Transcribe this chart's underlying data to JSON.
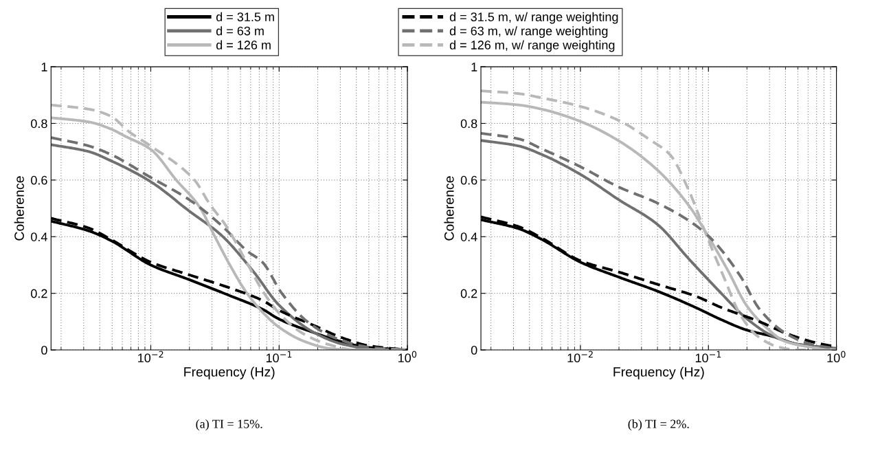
{
  "chart_data": [
    {
      "type": "line",
      "xlabel": "Frequency (Hz)",
      "ylabel": "Coherence",
      "log": "x",
      "grid": true,
      "legend": "top",
      "marker": "none",
      "xlim": [
        0.00167,
        1
      ],
      "xticks": [
        {
          "value": 0.01,
          "label": "10$^{−2}$"
        },
        {
          "value": 0.1,
          "label": "10$^{−1}$"
        },
        {
          "value": 1,
          "label": "10$^{0}$"
        }
      ],
      "ylim": [
        0,
        1
      ],
      "yticks": [
        0,
        0.2,
        0.4,
        0.6,
        0.8,
        1
      ],
      "annotations": [
        "(a) TI = 15%."
      ],
      "series": [
        {
          "name": "d = 31.5 m",
          "color": "#000000",
          "line_style": "solid",
          "x": [
            0.00167,
            0.00331,
            0.0049,
            0.01,
            0.02,
            0.0407,
            0.0741,
            0.1,
            0.19,
            0.302,
            0.479,
            1
          ],
          "values": [
            0.455,
            0.42,
            0.386,
            0.3,
            0.248,
            0.193,
            0.144,
            0.109,
            0.06,
            0.03,
            0.01,
            0
          ]
        },
        {
          "name": "d = 63 m",
          "color": "#707070",
          "line_style": "solid",
          "x": [
            0.00167,
            0.00331,
            0.0049,
            0.01,
            0.02,
            0.0355,
            0.063,
            0.1,
            0.19,
            0.316,
            0.631,
            1
          ],
          "values": [
            0.725,
            0.7,
            0.668,
            0.594,
            0.49,
            0.405,
            0.277,
            0.158,
            0.06,
            0.02,
            0,
            0
          ]
        },
        {
          "name": "d = 126 m",
          "color": "#b8b8b8",
          "line_style": "solid",
          "x": [
            0.00167,
            0.00331,
            0.0049,
            0.0063,
            0.01,
            0.0158,
            0.024,
            0.0316,
            0.0417,
            0.0562,
            0.0794,
            0.1,
            0.158,
            0.251,
            0.398,
            1
          ],
          "values": [
            0.82,
            0.805,
            0.78,
            0.755,
            0.708,
            0.6,
            0.505,
            0.4,
            0.297,
            0.2,
            0.12,
            0.08,
            0.03,
            0.005,
            0,
            0
          ]
        },
        {
          "name": "d = 31.5 m, w/ range weighting",
          "color": "#000000",
          "line_style": "dashed",
          "x": [
            0.00167,
            0.00331,
            0.0049,
            0.01,
            0.02,
            0.0407,
            0.0741,
            0.1,
            0.19,
            0.302,
            0.5,
            1
          ],
          "values": [
            0.465,
            0.43,
            0.39,
            0.31,
            0.265,
            0.22,
            0.175,
            0.14,
            0.085,
            0.045,
            0.015,
            0
          ]
        },
        {
          "name": "d = 63 m, w/ range weighting",
          "color": "#707070",
          "line_style": "dashed",
          "x": [
            0.00167,
            0.00331,
            0.0049,
            0.01,
            0.02,
            0.0355,
            0.0562,
            0.0741,
            0.105,
            0.166,
            0.282,
            0.5,
            1
          ],
          "values": [
            0.75,
            0.72,
            0.69,
            0.609,
            0.53,
            0.44,
            0.35,
            0.31,
            0.2,
            0.1,
            0.04,
            0.01,
            0
          ]
        },
        {
          "name": "d = 126 m, w/ range weighting",
          "color": "#b8b8b8",
          "line_style": "dashed",
          "x": [
            0.00167,
            0.00331,
            0.0049,
            0.0068,
            0.01,
            0.0219,
            0.0288,
            0.0389,
            0.0562,
            0.0741,
            0.1,
            0.151,
            0.24,
            0.398,
            1
          ],
          "values": [
            0.865,
            0.85,
            0.825,
            0.77,
            0.72,
            0.6,
            0.515,
            0.436,
            0.307,
            0.21,
            0.13,
            0.06,
            0.02,
            0,
            0
          ]
        }
      ]
    },
    {
      "type": "line",
      "xlabel": "Frequency (Hz)",
      "ylabel": "Coherence",
      "log": "x",
      "grid": true,
      "legend": false,
      "marker": "none",
      "xlim": [
        0.00167,
        1
      ],
      "xticks": [
        {
          "value": 0.01,
          "label": "10$^{−2}$"
        },
        {
          "value": 0.1,
          "label": "10$^{−1}$"
        },
        {
          "value": 1,
          "label": "10$^{0}$"
        }
      ],
      "ylim": [
        0,
        1
      ],
      "yticks": [
        0,
        0.2,
        0.4,
        0.6,
        0.8,
        1
      ],
      "annotations": [
        "(b) TI = 2%."
      ],
      "series": [
        {
          "color": "#000000",
          "line_style": "solid",
          "x": [
            0.00167,
            0.00331,
            0.005,
            0.01,
            0.02,
            0.0398,
            0.0794,
            0.126,
            0.2,
            0.316,
            0.5,
            1
          ],
          "values": [
            0.46,
            0.428,
            0.39,
            0.31,
            0.257,
            0.208,
            0.15,
            0.107,
            0.07,
            0.048,
            0.02,
            0.005
          ]
        },
        {
          "color": "#707070",
          "line_style": "solid",
          "x": [
            0.00167,
            0.00331,
            0.005,
            0.01,
            0.02,
            0.0398,
            0.0708,
            0.12,
            0.2,
            0.316,
            0.5,
            1
          ],
          "values": [
            0.74,
            0.72,
            0.69,
            0.62,
            0.53,
            0.444,
            0.32,
            0.21,
            0.11,
            0.05,
            0.02,
            0.005
          ]
        },
        {
          "color": "#b8b8b8",
          "line_style": "solid",
          "x": [
            0.00167,
            0.00331,
            0.005,
            0.01,
            0.02,
            0.0398,
            0.0708,
            0.1,
            0.141,
            0.2,
            0.282,
            0.398,
            0.631,
            1
          ],
          "values": [
            0.875,
            0.865,
            0.85,
            0.807,
            0.738,
            0.636,
            0.508,
            0.4,
            0.283,
            0.155,
            0.08,
            0.03,
            0.01,
            0
          ]
        },
        {
          "color": "#000000",
          "line_style": "dashed",
          "x": [
            0.00167,
            0.00331,
            0.005,
            0.01,
            0.02,
            0.0398,
            0.0794,
            0.126,
            0.251,
            0.398,
            0.631,
            1
          ],
          "values": [
            0.47,
            0.435,
            0.395,
            0.315,
            0.275,
            0.232,
            0.19,
            0.15,
            0.1,
            0.06,
            0.03,
            0.01
          ]
        },
        {
          "color": "#707070",
          "line_style": "dashed",
          "x": [
            0.00167,
            0.00331,
            0.005,
            0.01,
            0.02,
            0.0398,
            0.0794,
            0.112,
            0.178,
            0.251,
            0.398,
            0.631,
            1
          ],
          "values": [
            0.765,
            0.745,
            0.71,
            0.647,
            0.575,
            0.519,
            0.44,
            0.38,
            0.26,
            0.144,
            0.06,
            0.02,
            0.005
          ]
        },
        {
          "color": "#b8b8b8",
          "line_style": "dashed",
          "x": [
            0.00167,
            0.00331,
            0.005,
            0.01,
            0.02,
            0.0355,
            0.05,
            0.0708,
            0.0955,
            0.132,
            0.178,
            0.24,
            0.355,
            0.5,
            1
          ],
          "values": [
            0.915,
            0.905,
            0.89,
            0.86,
            0.81,
            0.74,
            0.69,
            0.56,
            0.41,
            0.257,
            0.123,
            0.05,
            0.01,
            0,
            0
          ]
        }
      ]
    }
  ]
}
